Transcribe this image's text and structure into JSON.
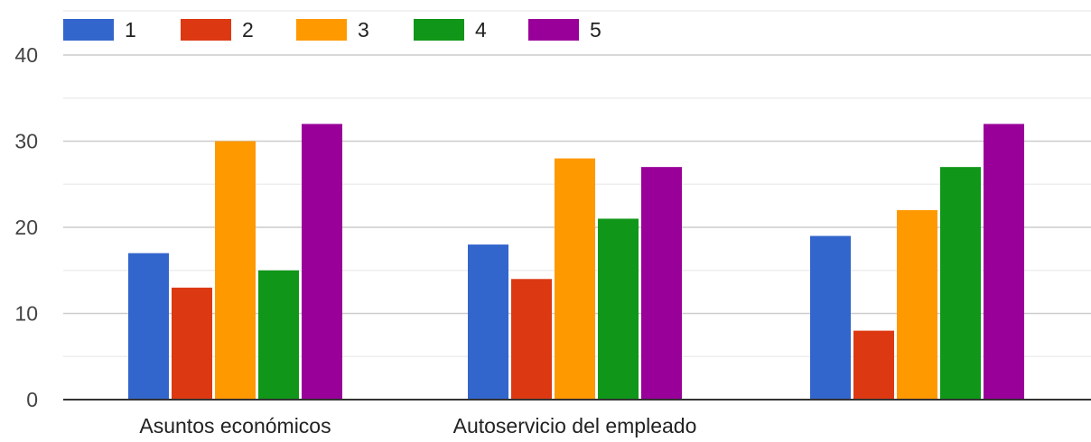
{
  "chart_data": {
    "type": "bar",
    "categories": [
      "Asuntos económicos",
      "Autoservicio del empleado",
      ""
    ],
    "series": [
      {
        "name": "1",
        "color": "#3366cc",
        "values": [
          17,
          18,
          19
        ]
      },
      {
        "name": "2",
        "color": "#dc3912",
        "values": [
          13,
          14,
          8
        ]
      },
      {
        "name": "3",
        "color": "#ff9900",
        "values": [
          30,
          28,
          22
        ]
      },
      {
        "name": "4",
        "color": "#109618",
        "values": [
          15,
          21,
          27
        ]
      },
      {
        "name": "5",
        "color": "#990099",
        "values": [
          32,
          27,
          32
        ]
      }
    ],
    "yticks": [
      "0",
      "10",
      "20",
      "30",
      "40"
    ],
    "ylim": [
      0,
      40
    ],
    "grid": true,
    "legend": "top-left"
  }
}
